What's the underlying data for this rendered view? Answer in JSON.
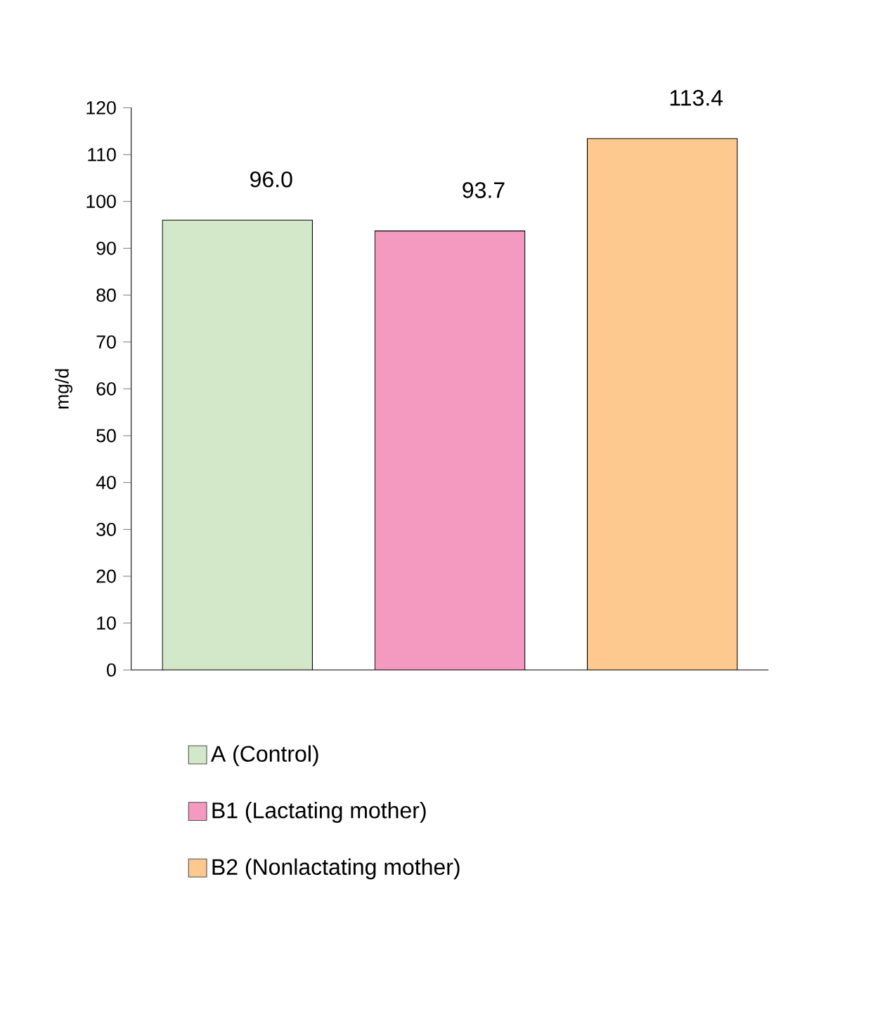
{
  "chart_data": {
    "type": "bar",
    "ylabel": "mg/d",
    "categories": [
      null,
      null,
      null
    ],
    "ylim": [
      0,
      120
    ],
    "yticks": [
      0,
      10,
      20,
      30,
      40,
      50,
      60,
      70,
      80,
      90,
      100,
      110,
      120
    ],
    "grid": false,
    "legend": "bottom",
    "series": [
      {
        "name": "A (Control)",
        "color": "#d3e8c8",
        "values": [
          96.0,
          null,
          null
        ],
        "value_labels": [
          "96.0",
          null,
          null
        ]
      },
      {
        "name": "B1 (Lactating mother)",
        "color": "#f49ac1",
        "values": [
          null,
          93.7,
          null
        ],
        "value_labels": [
          null,
          "93.7",
          null
        ]
      },
      {
        "name": "B2 (Nonlactating mother)",
        "color": "#fec98f",
        "values": [
          null,
          null,
          113.4
        ],
        "value_labels": [
          null,
          null,
          "113.4"
        ]
      }
    ]
  }
}
